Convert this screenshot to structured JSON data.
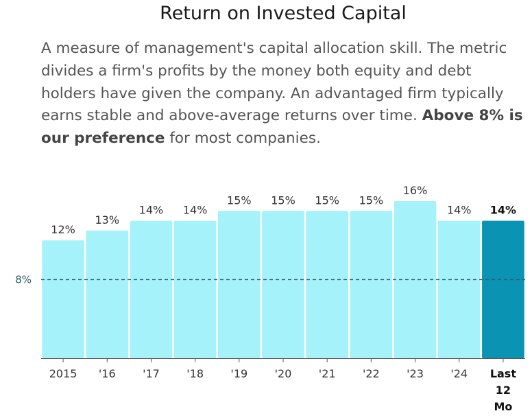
{
  "header": {
    "title": "Return on Invested Capital",
    "desc_text": "A measure of management's capital allocation skill. The metric divides a firm's profits by the money both equity and debt holders have given the company. An advantaged firm typically earns stable and above-average returns over time. ",
    "desc_bold": "Above 8% is our preference",
    "desc_tail": " for most companies."
  },
  "chart_data": {
    "type": "bar",
    "title": "Return on Invested Capital",
    "xlabel": "",
    "ylabel": "",
    "categories": [
      "2015",
      "'16",
      "'17",
      "'18",
      "'19",
      "'20",
      "'21",
      "'22",
      "'23",
      "'24",
      "Last 12 Mo"
    ],
    "values": [
      12,
      13,
      14,
      14,
      15,
      15,
      15,
      15,
      16,
      14,
      14
    ],
    "value_labels": [
      "12%",
      "13%",
      "14%",
      "14%",
      "15%",
      "15%",
      "15%",
      "15%",
      "16%",
      "14%",
      "14%"
    ],
    "ylim": [
      0,
      19.7
    ],
    "reference_line": {
      "value": 8,
      "label": "8%"
    },
    "colors": {
      "bar": "#a6f2fb",
      "highlight": "#0a93b3",
      "reference": "#2a5b6a"
    }
  }
}
